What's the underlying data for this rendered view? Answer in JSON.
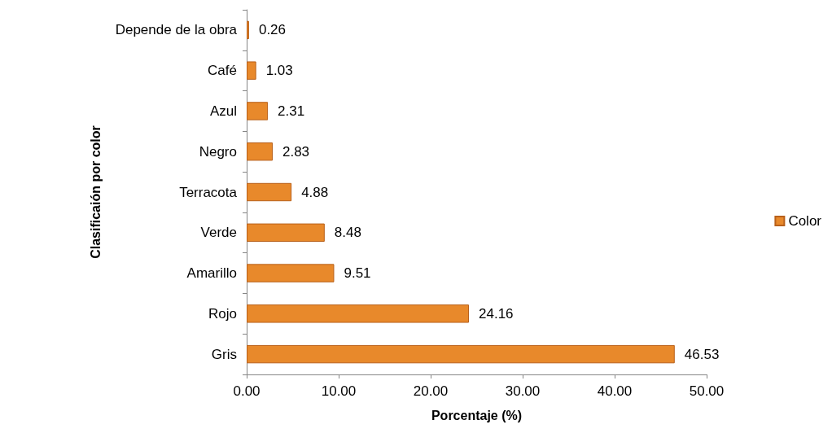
{
  "chart_data": {
    "type": "bar",
    "orientation": "horizontal",
    "xlabel": "Porcentaje (%)",
    "ylabel": "Clasificaión por color",
    "categories": [
      "Depende de la obra",
      "Café",
      "Azul",
      "Negro",
      "Terracota",
      "Verde",
      "Amarillo",
      "Rojo",
      "Gris"
    ],
    "series": [
      {
        "name": "Color",
        "color": "#e8892b",
        "values": [
          0.26,
          1.03,
          2.31,
          2.83,
          4.88,
          8.48,
          9.51,
          24.16,
          46.53
        ]
      }
    ],
    "xlim": [
      0,
      50
    ],
    "xticks": [
      {
        "value": 0,
        "label": "0.00"
      },
      {
        "value": 10,
        "label": "10.00"
      },
      {
        "value": 20,
        "label": "20.00"
      },
      {
        "value": 30,
        "label": "30.00"
      },
      {
        "value": 40,
        "label": "40.00"
      },
      {
        "value": 50,
        "label": "50.00"
      }
    ],
    "data_labels": true,
    "grid": false,
    "legend": "right"
  }
}
